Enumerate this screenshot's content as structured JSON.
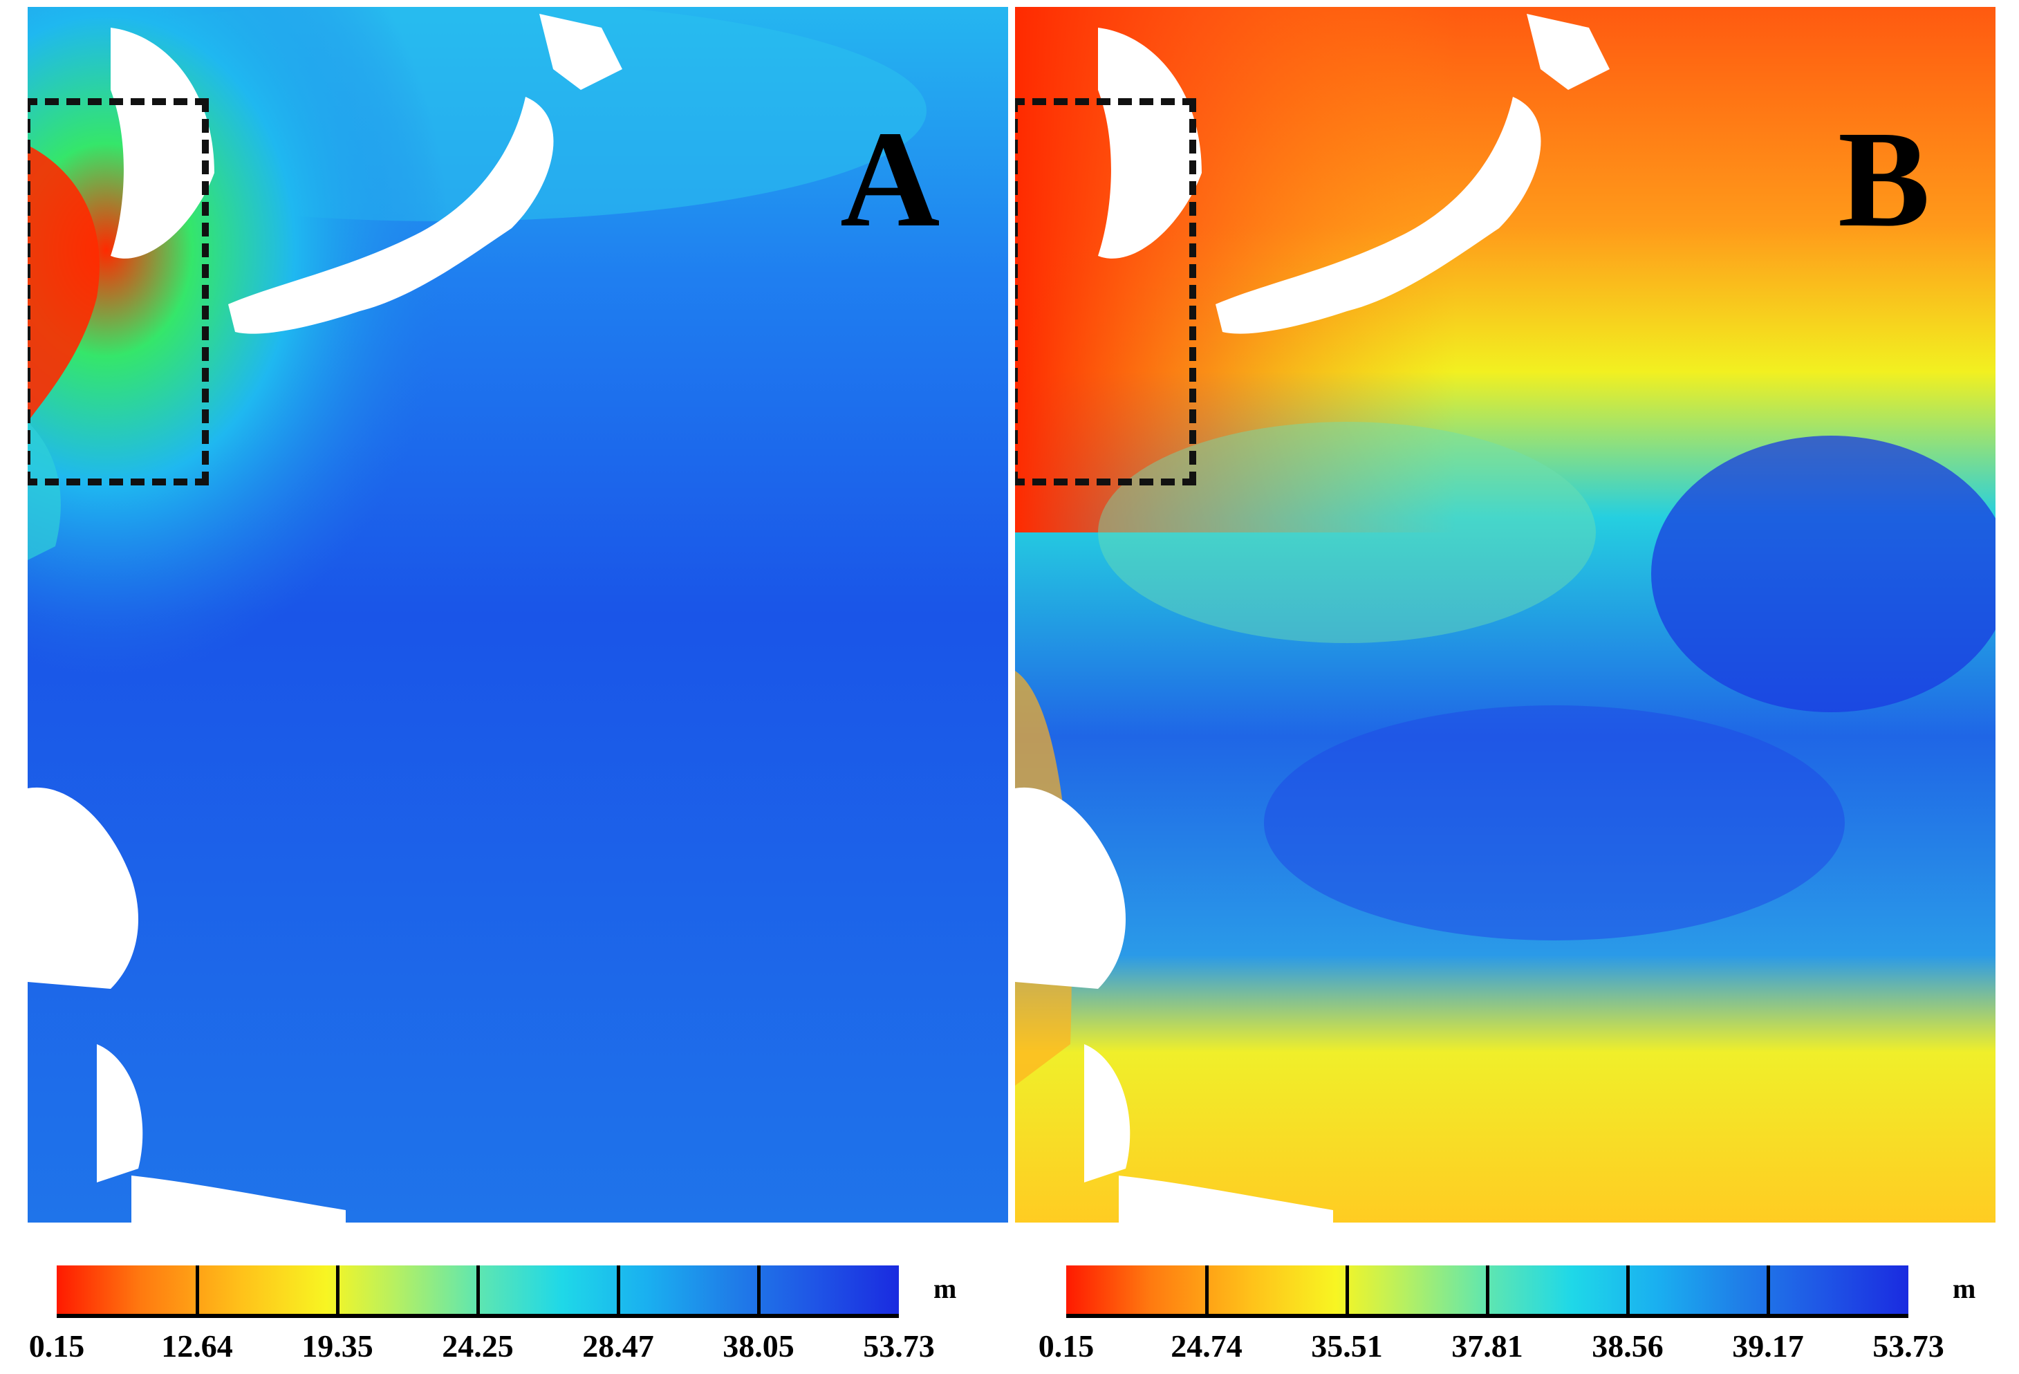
{
  "panels": [
    {
      "letter": "A",
      "colorbar": {
        "unit": "m",
        "ticks": [
          "0.15",
          "12.64",
          "19.35",
          "24.25",
          "28.47",
          "38.05",
          "53.73"
        ]
      }
    },
    {
      "letter": "B",
      "colorbar": {
        "unit": "m",
        "ticks": [
          "0.15",
          "24.74",
          "35.51",
          "37.81",
          "38.56",
          "39.17",
          "53.73"
        ]
      }
    }
  ],
  "colors": {
    "scale_low": "#ff1a00",
    "scale_mid_low": "#f8f522",
    "scale_mid": "#5fe6b0",
    "scale_mid_high": "#1fd8e8",
    "scale_high": "#1a2be0",
    "land": "#ffffff",
    "frame": "#000000"
  }
}
